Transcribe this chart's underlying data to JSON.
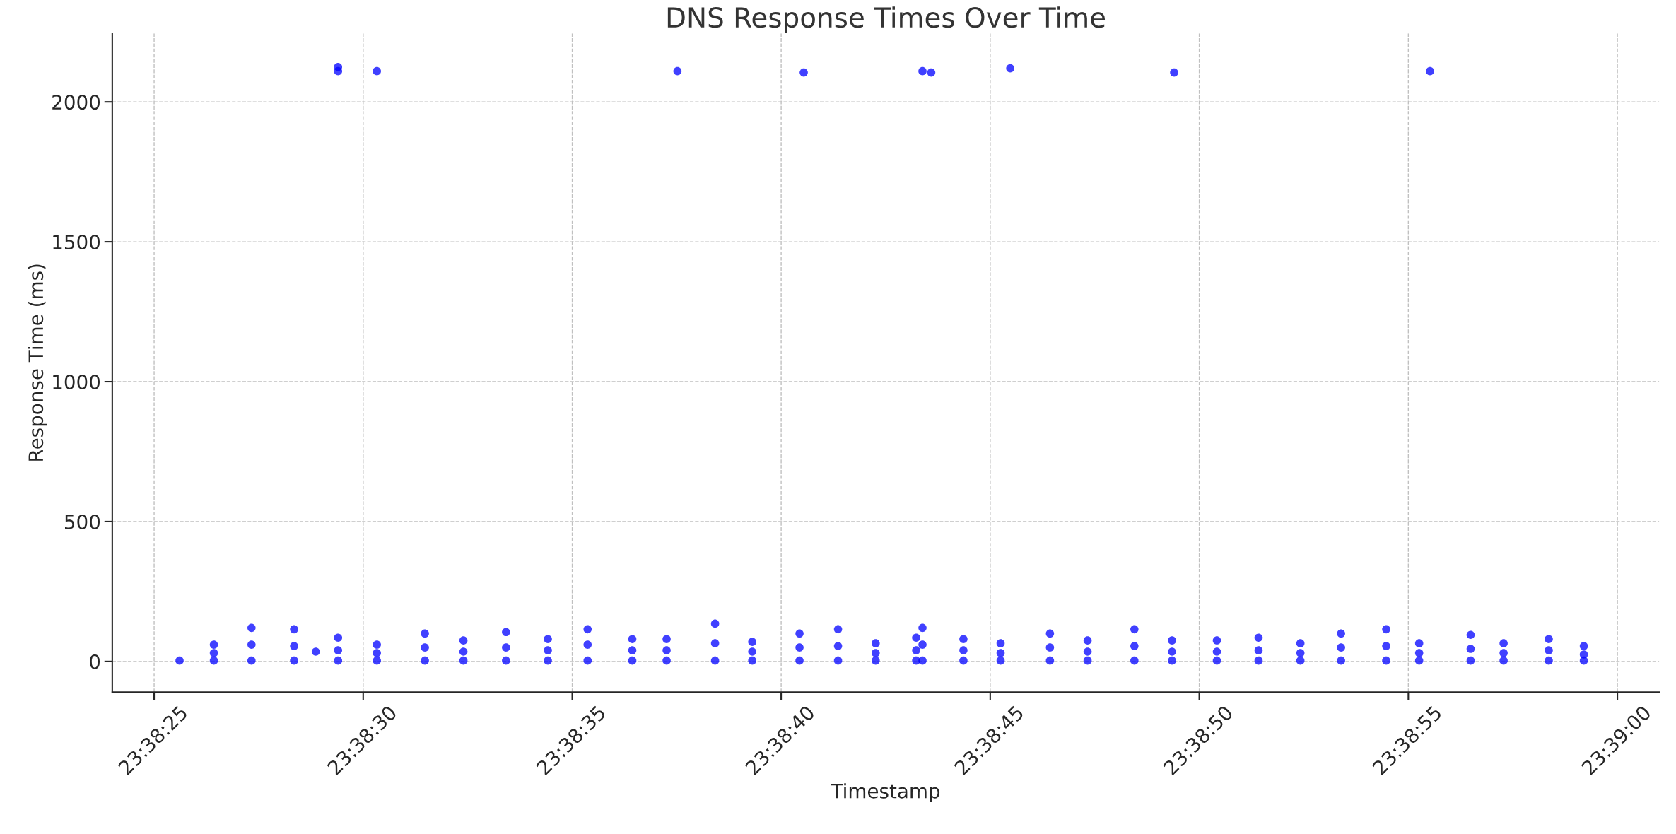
{
  "chart_data": {
    "type": "scatter",
    "title": "DNS Response Times Over Time",
    "xlabel": "Timestamp",
    "ylabel": "Response Time (ms)",
    "x": [
      23.640447,
      23.640675,
      23.640675,
      23.640675,
      23.640925,
      23.640925,
      23.640925,
      23.641208,
      23.641208,
      23.641208,
      23.641352,
      23.6415,
      23.6415,
      23.6415,
      23.6415,
      23.6415,
      23.641758,
      23.641758,
      23.641758,
      23.641758,
      23.642077,
      23.642077,
      23.642077,
      23.642333,
      23.642333,
      23.642333,
      23.642616,
      23.642616,
      23.642616,
      23.642894,
      23.642894,
      23.642894,
      23.643158,
      23.643158,
      23.643158,
      23.643455,
      23.643455,
      23.643455,
      23.643683,
      23.643683,
      23.643683,
      23.643755,
      23.644005,
      23.644005,
      23.644005,
      23.644252,
      23.644252,
      23.644252,
      23.644566,
      23.644566,
      23.644566,
      23.644594,
      23.644822,
      23.644822,
      23.644822,
      23.645072,
      23.645072,
      23.645072,
      23.645341,
      23.645341,
      23.645341,
      23.645383,
      23.645383,
      23.645383,
      23.645383,
      23.645441,
      23.645655,
      23.645655,
      23.645655,
      23.645902,
      23.645902,
      23.645902,
      23.645966,
      23.64623,
      23.64623,
      23.64623,
      23.64648,
      23.64648,
      23.64648,
      23.646791,
      23.646791,
      23.646791,
      23.647041,
      23.647041,
      23.647041,
      23.647055,
      23.647339,
      23.647339,
      23.647339,
      23.647616,
      23.647616,
      23.647616,
      23.647894,
      23.647894,
      23.647894,
      23.648164,
      23.648164,
      23.648164,
      23.648464,
      23.648464,
      23.648464,
      23.648683,
      23.648683,
      23.648683,
      23.648755,
      23.649025,
      23.649025,
      23.649025,
      23.649244,
      23.649244,
      23.649244,
      23.649544,
      23.649544,
      23.649544,
      23.649777,
      23.649777,
      23.649777
    ],
    "values": [
      3,
      3,
      30,
      60,
      3,
      60,
      120,
      3,
      55,
      115,
      35,
      3,
      40,
      85,
      2110,
      2125,
      3,
      30,
      60,
      2110,
      3,
      50,
      100,
      3,
      35,
      75,
      3,
      50,
      105,
      3,
      40,
      80,
      3,
      60,
      115,
      3,
      40,
      80,
      3,
      40,
      80,
      2110,
      3,
      65,
      135,
      3,
      35,
      70,
      3,
      50,
      100,
      2105,
      3,
      55,
      115,
      3,
      30,
      65,
      3,
      40,
      85,
      3,
      60,
      120,
      2110,
      2105,
      3,
      40,
      80,
      3,
      30,
      65,
      2120,
      3,
      50,
      100,
      3,
      35,
      75,
      3,
      55,
      115,
      3,
      35,
      75,
      2105,
      3,
      35,
      75,
      3,
      40,
      85,
      3,
      30,
      65,
      3,
      50,
      100,
      3,
      55,
      115,
      3,
      30,
      65,
      2110,
      3,
      45,
      95,
      3,
      30,
      65,
      3,
      40,
      80,
      3,
      25,
      55
    ],
    "color": "#0000ff",
    "marker": "circle",
    "grid": true,
    "xlim": [
      23.64,
      23.650278
    ],
    "xticks": [
      {
        "value": 23.640278,
        "label": "23:38:25"
      },
      {
        "value": 23.641667,
        "label": "23:38:30"
      },
      {
        "value": 23.643056,
        "label": "23:38:35"
      },
      {
        "value": 23.644444,
        "label": "23:38:40"
      },
      {
        "value": 23.645833,
        "label": "23:38:45"
      },
      {
        "value": 23.647222,
        "label": "23:38:50"
      },
      {
        "value": 23.648611,
        "label": "23:38:55"
      },
      {
        "value": 23.65,
        "label": "23:39:00"
      }
    ],
    "ylim": [
      -110,
      2245
    ],
    "yticks": [
      0,
      500,
      1000,
      1500,
      2000
    ]
  }
}
